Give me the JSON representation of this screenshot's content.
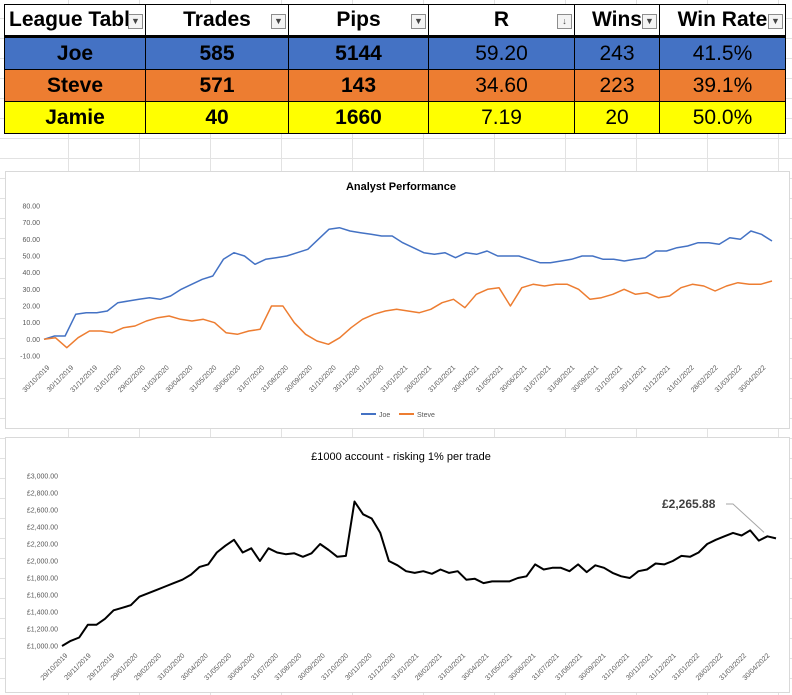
{
  "league_table": {
    "headers": [
      "League Tabl",
      "Trades",
      "Pips",
      "R",
      "Wins",
      "Win Rate"
    ],
    "filter_icons": [
      "dropdown-filter",
      "dropdown-filter",
      "dropdown-filter",
      "sort-desc-filter",
      "dropdown-filter",
      "dropdown-filter"
    ],
    "rows": [
      {
        "name": "Joe",
        "trades": "585",
        "pips": "5144",
        "r": "59.20",
        "wins": "243",
        "win_rate": "41.5%",
        "color": "#4472c4"
      },
      {
        "name": "Steve",
        "trades": "571",
        "pips": "143",
        "r": "34.60",
        "wins": "223",
        "win_rate": "39.1%",
        "color": "#ed7d31"
      },
      {
        "name": "Jamie",
        "trades": "40",
        "pips": "1660",
        "r": "7.19",
        "wins": "20",
        "win_rate": "50.0%",
        "color": "#ffff00"
      }
    ]
  },
  "chart_data": [
    {
      "type": "line",
      "title": "Analyst Performance",
      "ylim": [
        -10,
        80
      ],
      "yticks": [
        "-10.00",
        "0.00",
        "10.00",
        "20.00",
        "30.00",
        "40.00",
        "50.00",
        "60.00",
        "70.00",
        "80.00"
      ],
      "xticks": [
        "30/10/2019",
        "30/11/2019",
        "31/12/2019",
        "31/01/2020",
        "29/02/2020",
        "31/03/2020",
        "30/04/2020",
        "31/05/2020",
        "30/06/2020",
        "31/07/2020",
        "31/08/2020",
        "30/09/2020",
        "31/10/2020",
        "30/11/2020",
        "31/12/2020",
        "31/01/2021",
        "28/02/2021",
        "31/03/2021",
        "30/04/2021",
        "31/05/2021",
        "30/06/2021",
        "31/07/2021",
        "31/08/2021",
        "30/09/2021",
        "31/10/2021",
        "30/11/2021",
        "31/12/2021",
        "31/01/2022",
        "28/02/2022",
        "31/03/2022",
        "30/04/2022"
      ],
      "grid": false,
      "legend": "bottom",
      "series": [
        {
          "name": "Joe",
          "color": "#4472c4",
          "values": [
            0,
            2,
            2,
            15,
            16,
            16,
            17,
            22,
            23,
            24,
            25,
            24,
            26,
            30,
            33,
            36,
            38,
            48,
            52,
            50,
            45,
            48,
            49,
            50,
            52,
            54,
            60,
            66,
            67,
            65,
            64,
            63,
            62,
            62,
            58,
            55,
            52,
            51,
            52,
            49,
            52,
            51,
            53,
            50,
            50,
            50,
            48,
            46,
            46,
            47,
            48,
            50,
            50,
            48,
            48,
            47,
            48,
            49,
            53,
            53,
            55,
            56,
            58,
            58,
            57,
            61,
            60,
            65,
            63,
            59
          ]
        },
        {
          "name": "Steve",
          "color": "#ed7d31",
          "values": [
            0,
            1,
            -5,
            1,
            5,
            5,
            4,
            7,
            8,
            11,
            13,
            14,
            12,
            11,
            12,
            10,
            4,
            3,
            5,
            6,
            20,
            20,
            10,
            3,
            -1,
            -3,
            1,
            7,
            12,
            15,
            17,
            18,
            17,
            16,
            18,
            22,
            24,
            19,
            27,
            30,
            31,
            20,
            31,
            33,
            32,
            33,
            33,
            30,
            24,
            25,
            27,
            30,
            27,
            28,
            25,
            26,
            31,
            33,
            32,
            29,
            32,
            34,
            33,
            33,
            35
          ]
        }
      ]
    },
    {
      "type": "line",
      "title": "£1000 account - risking 1% per trade",
      "ylim": [
        1000,
        3000
      ],
      "yticks": [
        "£1,000.00",
        "£1,200.00",
        "£1,400.00",
        "£1,600.00",
        "£1,800.00",
        "£2,000.00",
        "£2,200.00",
        "£2,400.00",
        "£2,600.00",
        "£2,800.00",
        "£3,000.00"
      ],
      "xticks": [
        "29/10/2019",
        "29/11/2019",
        "29/12/2019",
        "29/01/2020",
        "29/02/2020",
        "31/03/2020",
        "30/04/2020",
        "31/05/2020",
        "30/06/2020",
        "31/07/2020",
        "31/08/2020",
        "30/09/2020",
        "31/10/2020",
        "30/11/2020",
        "31/12/2020",
        "31/01/2021",
        "28/02/2021",
        "31/03/2021",
        "30/04/2021",
        "31/05/2021",
        "30/06/2021",
        "31/07/2021",
        "31/08/2021",
        "30/09/2021",
        "31/10/2021",
        "30/11/2021",
        "31/12/2021",
        "31/01/2022",
        "28/02/2022",
        "31/03/2022",
        "30/04/2022"
      ],
      "annotation": "£2,265.88",
      "grid": false,
      "series": [
        {
          "name": "",
          "color": "#000000",
          "values": [
            1000,
            1060,
            1100,
            1250,
            1250,
            1320,
            1420,
            1450,
            1480,
            1580,
            1620,
            1660,
            1700,
            1740,
            1780,
            1840,
            1930,
            1960,
            2100,
            2180,
            2250,
            2100,
            2150,
            2000,
            2150,
            2100,
            2080,
            2090,
            2050,
            2090,
            2200,
            2130,
            2050,
            2060,
            2700,
            2550,
            2500,
            2330,
            2000,
            1950,
            1880,
            1860,
            1880,
            1850,
            1900,
            1860,
            1880,
            1780,
            1790,
            1740,
            1760,
            1760,
            1760,
            1800,
            1820,
            1960,
            1900,
            1920,
            1920,
            1880,
            1960,
            1870,
            1950,
            1920,
            1860,
            1820,
            1800,
            1880,
            1900,
            1970,
            1960,
            2000,
            2060,
            2050,
            2100,
            2200,
            2250,
            2290,
            2330,
            2300,
            2360,
            2240,
            2290,
            2265.88
          ]
        }
      ]
    }
  ]
}
